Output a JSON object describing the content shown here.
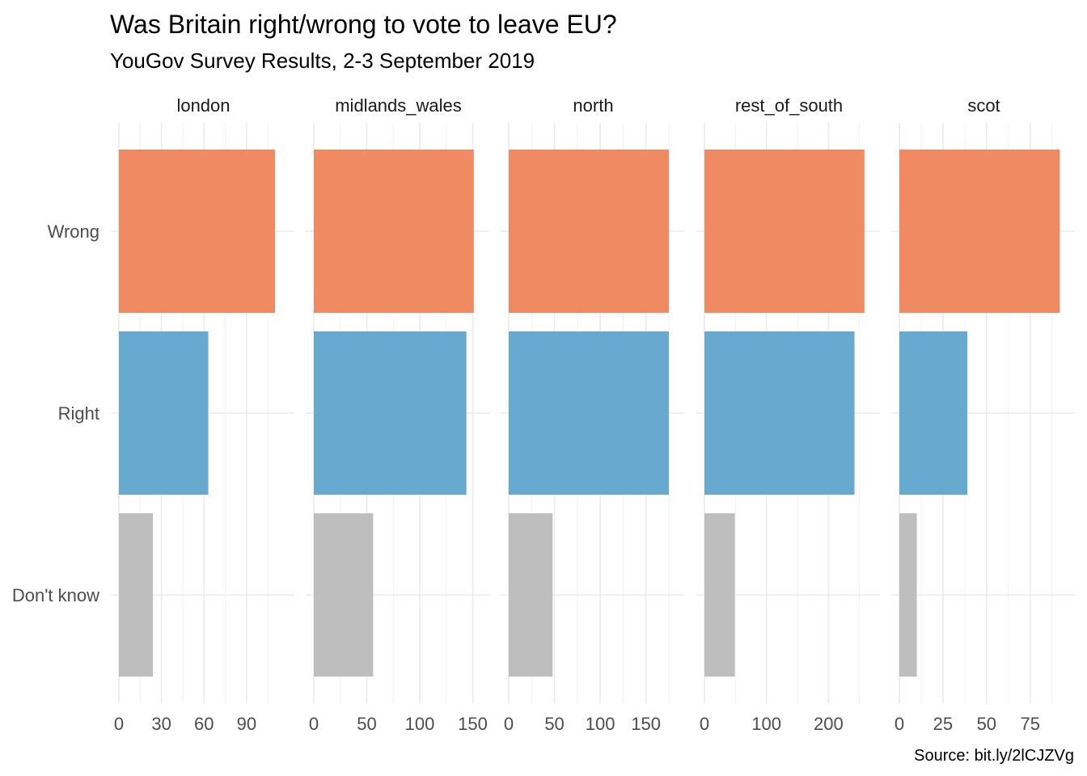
{
  "chart_data": {
    "type": "bar",
    "orientation": "horizontal",
    "faceted": true,
    "title": "Was Britain right/wrong to vote to leave EU?",
    "subtitle": "YouGov Survey Results, 2-3 September 2019",
    "caption": "Source: bit.ly/2lCJZVg",
    "categories": [
      "Wrong",
      "Right",
      "Don't know"
    ],
    "colors": {
      "Wrong": "#ef8a62",
      "Right": "#67a9cf",
      "Don't know": "#bebebe"
    },
    "grid": true,
    "facets": [
      {
        "name": "london",
        "xlim": [
          0,
          118
        ],
        "ticks": [
          0,
          30,
          60,
          90
        ],
        "values": {
          "Wrong": 110,
          "Right": 63,
          "Don't know": 24
        }
      },
      {
        "name": "midlands_wales",
        "xlim": [
          0,
          158
        ],
        "ticks": [
          0,
          50,
          100,
          150
        ],
        "values": {
          "Wrong": 151,
          "Right": 144,
          "Don't know": 56
        }
      },
      {
        "name": "north",
        "xlim": [
          0,
          183
        ],
        "ticks": [
          0,
          50,
          100,
          150
        ],
        "values": {
          "Wrong": 175,
          "Right": 175,
          "Don't know": 48
        }
      },
      {
        "name": "rest_of_south",
        "xlim": [
          0,
          270
        ],
        "ticks": [
          0,
          100,
          200
        ],
        "values": {
          "Wrong": 258,
          "Right": 242,
          "Don't know": 49
        }
      },
      {
        "name": "scot",
        "xlim": [
          0,
          96
        ],
        "ticks": [
          0,
          25,
          50,
          75
        ],
        "values": {
          "Wrong": 92,
          "Right": 39,
          "Don't know": 10
        }
      }
    ]
  }
}
